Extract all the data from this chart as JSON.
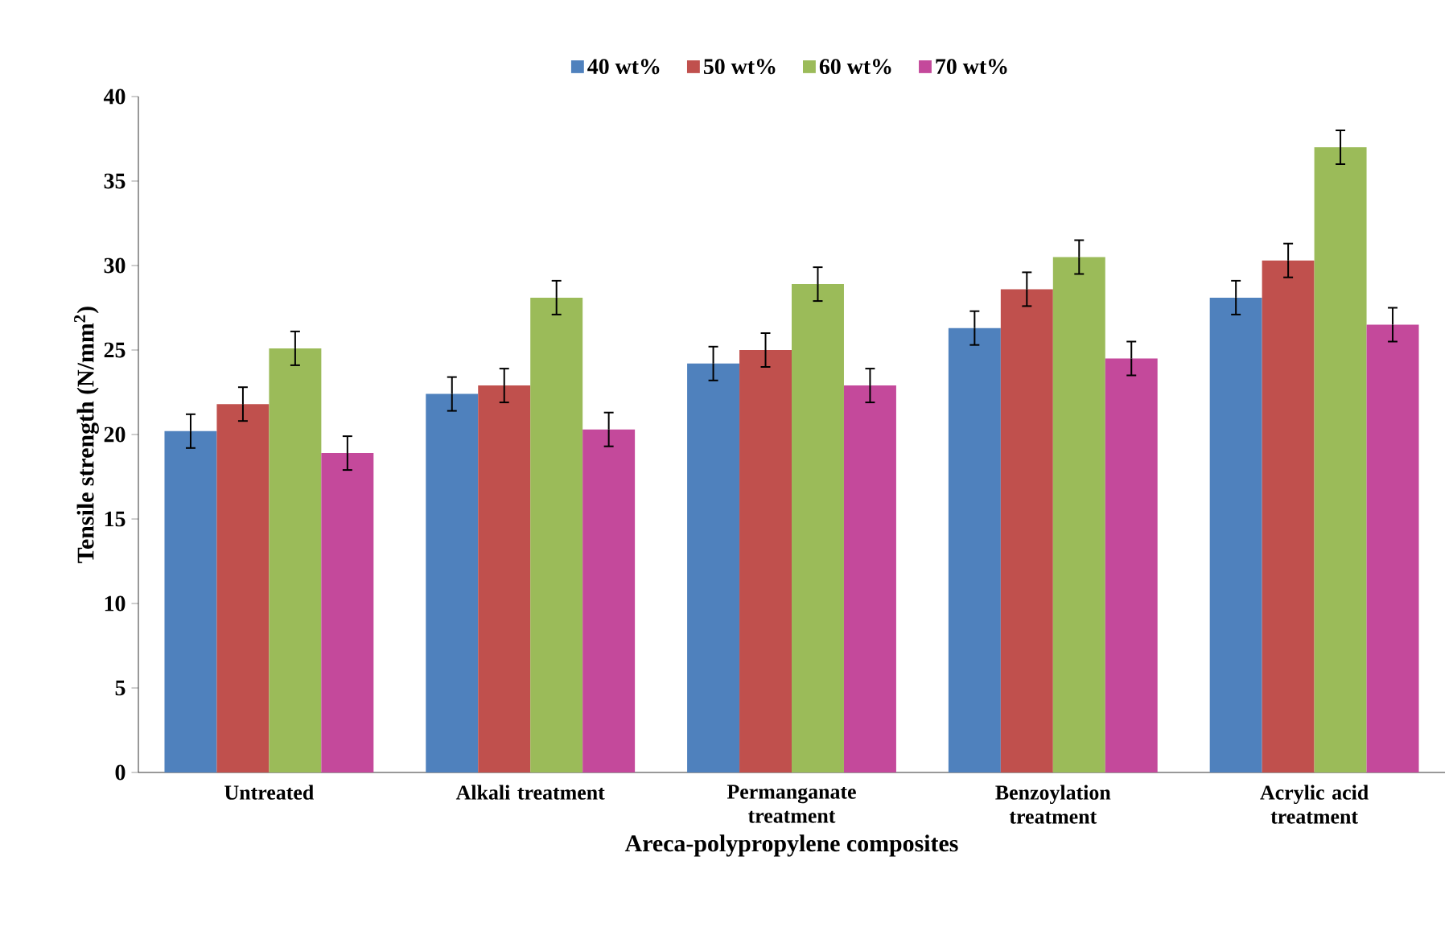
{
  "chart_data": {
    "type": "bar",
    "xlabel": "Areca-polypropylene composites",
    "ylabel": "Tensile strength (N/mm$^{2}$)",
    "categories": [
      "Untreated",
      "Alkali treatment",
      "Permanganate treatment",
      "Benzoylation treatment",
      "Acrylic acid treatment"
    ],
    "series": [
      {
        "name": "40 wt%",
        "color": "#4f81bd",
        "values": [
          20.2,
          22.4,
          24.2,
          26.3,
          28.1
        ],
        "errors": [
          1,
          1,
          1,
          1,
          1
        ]
      },
      {
        "name": "50 wt%",
        "color": "#c0504d",
        "values": [
          21.8,
          22.9,
          25.0,
          28.6,
          30.3
        ],
        "errors": [
          1,
          1,
          1,
          1,
          1
        ]
      },
      {
        "name": "60 wt%",
        "color": "#9bbb59",
        "values": [
          25.1,
          28.1,
          28.9,
          30.5,
          37.0
        ],
        "errors": [
          1,
          1,
          1,
          1,
          1
        ]
      },
      {
        "name": "70 wt%",
        "color": "#c4499b",
        "values": [
          18.9,
          20.3,
          22.9,
          24.5,
          26.5
        ],
        "errors": [
          1,
          1,
          1,
          1,
          1
        ]
      }
    ],
    "ylim": [
      0,
      40
    ],
    "yticks": [
      0,
      5,
      10,
      15,
      20,
      25,
      30,
      35,
      40
    ],
    "grid": false,
    "legend": "top"
  }
}
